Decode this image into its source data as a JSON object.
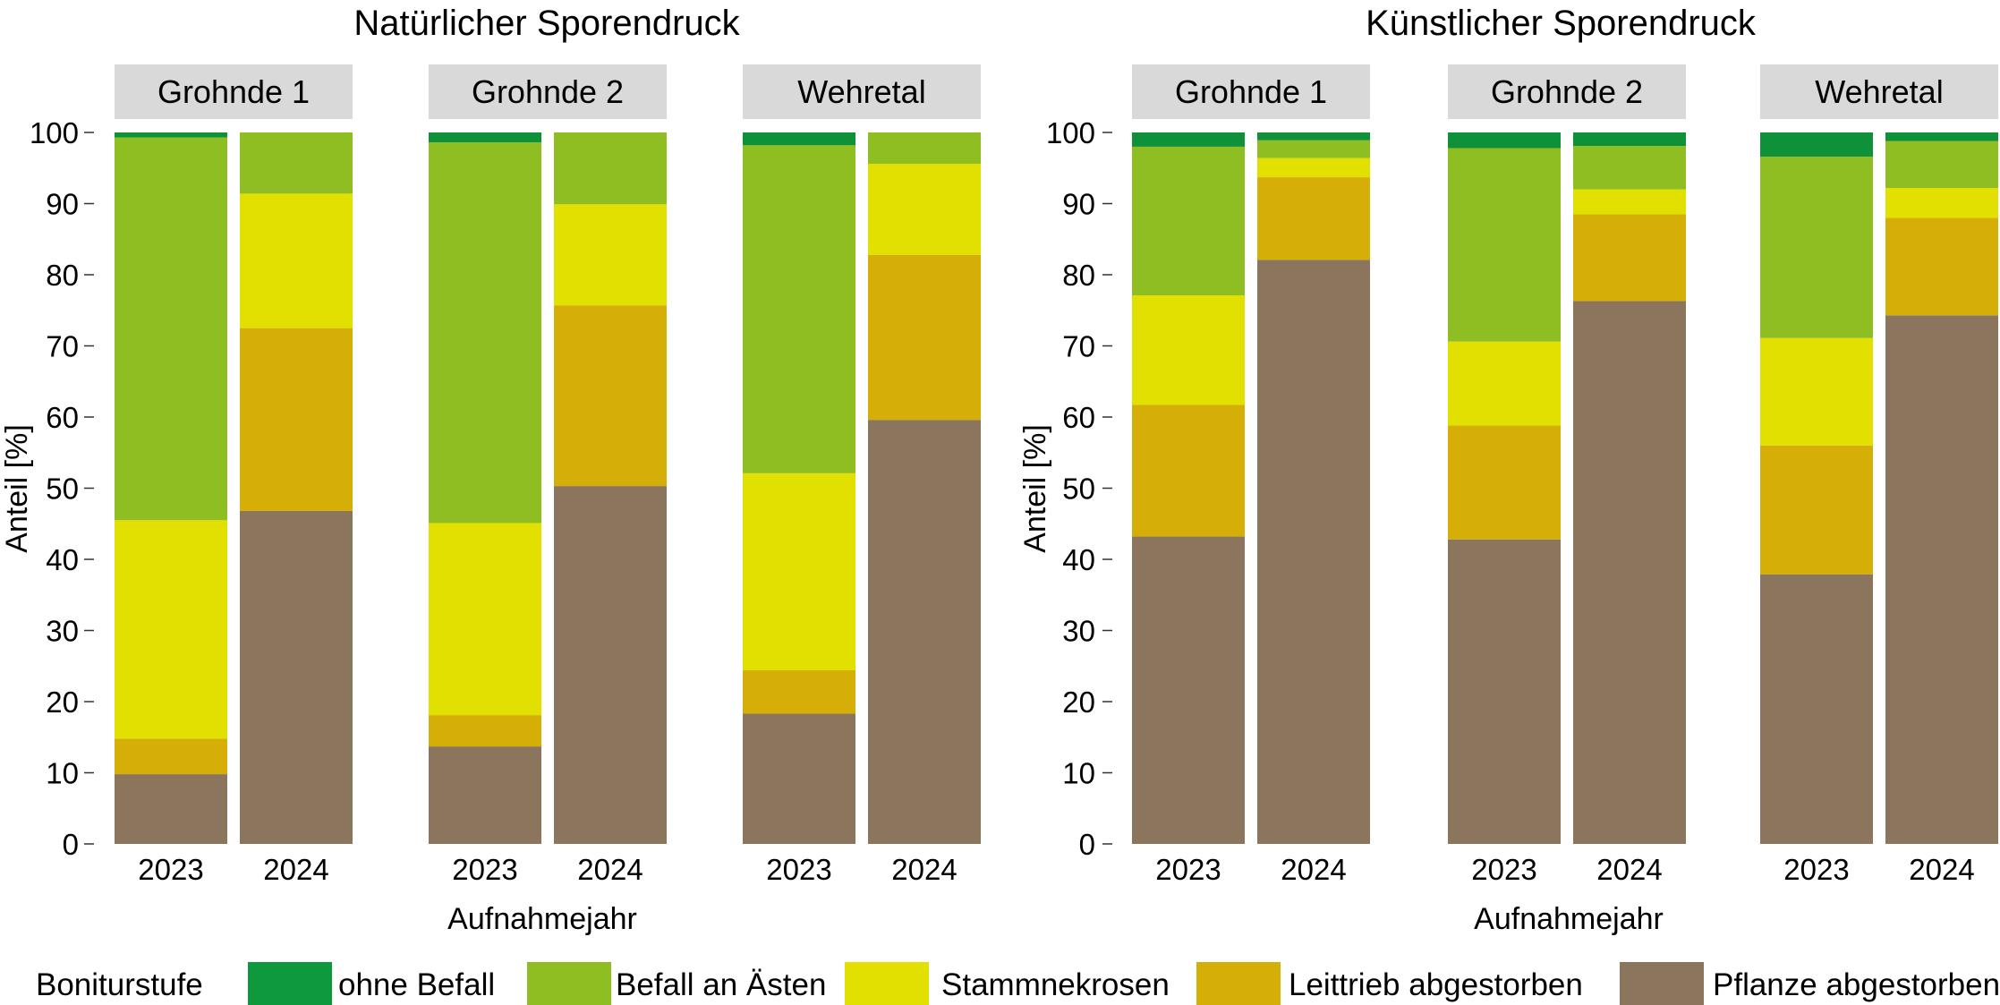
{
  "chart_data": {
    "type": "bar",
    "stacked": true,
    "percent": true,
    "ylabel": "Anteil [%]",
    "xlabel": "Aufnahmejahr",
    "ylim": [
      0,
      100
    ],
    "yticks": [
      0,
      10,
      20,
      30,
      40,
      50,
      60,
      70,
      80,
      90,
      100
    ],
    "grid": false,
    "legend": {
      "title": "Boniturstufe",
      "placement": "bottom",
      "entries": [
        {
          "name": "ohne Befall",
          "color": "#0E9A3C"
        },
        {
          "name": "Befall an Ästen",
          "color": "#8FBE22"
        },
        {
          "name": "Stammnekrosen",
          "color": "#E1E000"
        },
        {
          "name": "Leittrieb abgestorben",
          "color": "#D5AF07"
        },
        {
          "name": "Pflanze abgestorben",
          "color": "#8B755D"
        }
      ]
    },
    "stack_order_bottom_to_top": [
      "Pflanze abgestorben",
      "Leittrieb abgestorben",
      "Stammnekrosen",
      "Befall an Ästen",
      "ohne Befall"
    ],
    "panels": [
      {
        "title": "Natürlicher Sporendruck",
        "facets": [
          {
            "label": "Grohnde 1",
            "categories": [
              "2023",
              "2024"
            ],
            "series": [
              {
                "name": "Pflanze abgestorben",
                "values": [
                  9.8,
                  46.8
                ]
              },
              {
                "name": "Leittrieb abgestorben",
                "values": [
                  5.0,
                  25.7
                ]
              },
              {
                "name": "Stammnekrosen",
                "values": [
                  30.7,
                  18.9
                ]
              },
              {
                "name": "Befall an Ästen",
                "values": [
                  53.8,
                  8.6
                ]
              },
              {
                "name": "ohne Befall",
                "values": [
                  0.7,
                  0.0
                ]
              }
            ]
          },
          {
            "label": "Grohnde 2",
            "categories": [
              "2023",
              "2024"
            ],
            "series": [
              {
                "name": "Pflanze abgestorben",
                "values": [
                  13.7,
                  50.3
                ]
              },
              {
                "name": "Leittrieb abgestorben",
                "values": [
                  4.4,
                  25.4
                ]
              },
              {
                "name": "Stammnekrosen",
                "values": [
                  27.0,
                  14.2
                ]
              },
              {
                "name": "Befall an Ästen",
                "values": [
                  53.5,
                  10.1
                ]
              },
              {
                "name": "ohne Befall",
                "values": [
                  1.4,
                  0.0
                ]
              }
            ]
          },
          {
            "label": "Wehretal",
            "categories": [
              "2023",
              "2024"
            ],
            "series": [
              {
                "name": "Pflanze abgestorben",
                "values": [
                  18.3,
                  59.6
                ]
              },
              {
                "name": "Leittrieb abgestorben",
                "values": [
                  6.1,
                  23.2
                ]
              },
              {
                "name": "Stammnekrosen",
                "values": [
                  27.7,
                  12.8
                ]
              },
              {
                "name": "Befall an Ästen",
                "values": [
                  46.1,
                  4.4
                ]
              },
              {
                "name": "ohne Befall",
                "values": [
                  1.8,
                  0.0
                ]
              }
            ]
          }
        ]
      },
      {
        "title": "Künstlicher Sporendruck",
        "facets": [
          {
            "label": "Grohnde 1",
            "categories": [
              "2023",
              "2024"
            ],
            "series": [
              {
                "name": "Pflanze abgestorben",
                "values": [
                  43.2,
                  82.1
                ]
              },
              {
                "name": "Leittrieb abgestorben",
                "values": [
                  18.5,
                  11.6
                ]
              },
              {
                "name": "Stammnekrosen",
                "values": [
                  15.4,
                  2.7
                ]
              },
              {
                "name": "Befall an Ästen",
                "values": [
                  20.9,
                  2.5
                ]
              },
              {
                "name": "ohne Befall",
                "values": [
                  2.0,
                  1.1
                ]
              }
            ]
          },
          {
            "label": "Grohnde 2",
            "categories": [
              "2023",
              "2024"
            ],
            "series": [
              {
                "name": "Pflanze abgestorben",
                "values": [
                  42.8,
                  76.3
                ]
              },
              {
                "name": "Leittrieb abgestorben",
                "values": [
                  16.0,
                  12.2
                ]
              },
              {
                "name": "Stammnekrosen",
                "values": [
                  11.8,
                  3.5
                ]
              },
              {
                "name": "Befall an Ästen",
                "values": [
                  27.2,
                  6.1
                ]
              },
              {
                "name": "ohne Befall",
                "values": [
                  2.2,
                  1.9
                ]
              }
            ]
          },
          {
            "label": "Wehretal",
            "categories": [
              "2023",
              "2024"
            ],
            "series": [
              {
                "name": "Pflanze abgestorben",
                "values": [
                  37.9,
                  74.3
                ]
              },
              {
                "name": "Leittrieb abgestorben",
                "values": [
                  18.1,
                  13.7
                ]
              },
              {
                "name": "Stammnekrosen",
                "values": [
                  15.1,
                  4.2
                ]
              },
              {
                "name": "Befall an Ästen",
                "values": [
                  25.5,
                  6.6
                ]
              },
              {
                "name": "ohne Befall",
                "values": [
                  3.4,
                  1.2
                ]
              }
            ]
          }
        ]
      }
    ]
  },
  "colors": {
    "strip_background": "#D9D9D9",
    "bar_ohne_befall": "#0E9138"
  }
}
